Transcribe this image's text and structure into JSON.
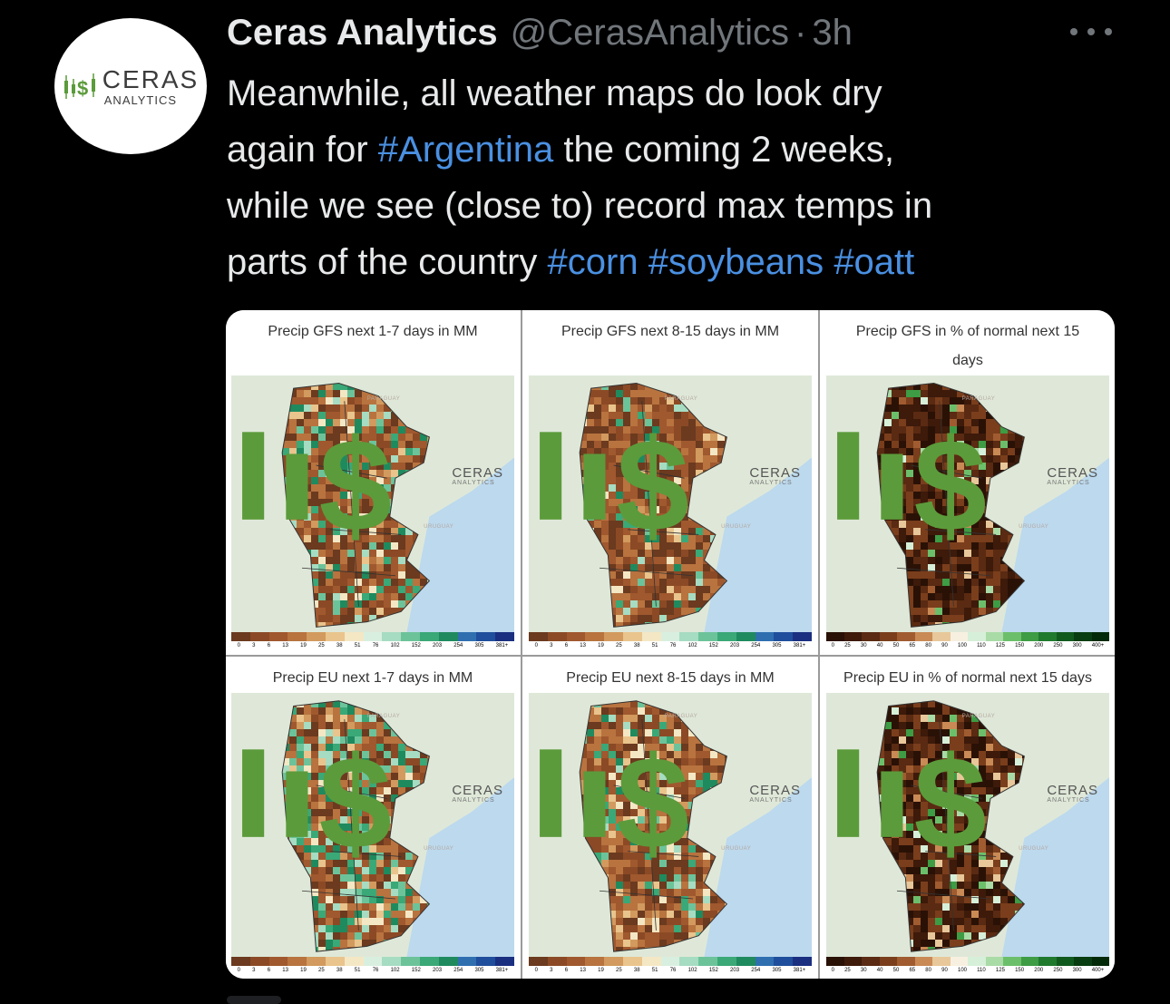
{
  "avatar": {
    "logo_ceras": "CERAS",
    "logo_analytics": "ANALYTICS",
    "accent": "#5b9b3b"
  },
  "tweet": {
    "display_name": "Ceras Analytics",
    "handle": "@CerasAnalytics",
    "separator": "·",
    "time": "3h",
    "lines": [
      [
        {
          "t": "Meanwhile, all weather maps do look dry"
        }
      ],
      [
        {
          "t": "again for "
        },
        {
          "t": "#Argentina",
          "tag": true
        },
        {
          "t": " the coming 2 weeks,"
        }
      ],
      [
        {
          "t": "while we see (close to) record max temps in"
        }
      ],
      [
        {
          "t": "parts of the country "
        },
        {
          "t": "#corn",
          "tag": true
        },
        {
          "t": " "
        },
        {
          "t": "#soybeans",
          "tag": true
        },
        {
          "t": " "
        },
        {
          "t": "#oatt",
          "tag": true
        }
      ]
    ],
    "hashtag_color": "#4a90e2"
  },
  "media": {
    "watermark_ceras": "CERAS",
    "watermark_analytics": "ANALYTICS",
    "label_paraguay": "PARAGUAY",
    "label_uruguay": "URUGUAY",
    "mm_scale": [
      "0",
      "3",
      "6",
      "13",
      "19",
      "25",
      "38",
      "51",
      "76",
      "102",
      "152",
      "203",
      "254",
      "305",
      "381+"
    ],
    "pct_scale": [
      "0",
      "25",
      "30",
      "40",
      "50",
      "65",
      "80",
      "90",
      "100",
      "110",
      "125",
      "150",
      "200",
      "250",
      "300",
      "400+"
    ],
    "panels": [
      {
        "title": "Precip GFS next 1-7 days in MM",
        "scale": "mm",
        "dry": 0.7,
        "wet": 0.18
      },
      {
        "title": "Precip GFS next 8-15 days in MM",
        "scale": "mm",
        "dry": 0.82,
        "wet": 0.1
      },
      {
        "title": "Precip GFS in % of normal next 15 days",
        "scale": "pct",
        "dry": 0.88,
        "wet": 0.06
      },
      {
        "title": "Precip EU next 1-7 days in MM",
        "scale": "mm",
        "dry": 0.55,
        "wet": 0.35
      },
      {
        "title": "Precip EU next 8-15 days in MM",
        "scale": "mm",
        "dry": 0.72,
        "wet": 0.12
      },
      {
        "title": "Precip EU in % of normal next 15 days",
        "scale": "pct",
        "dry": 0.8,
        "wet": 0.1
      }
    ]
  }
}
